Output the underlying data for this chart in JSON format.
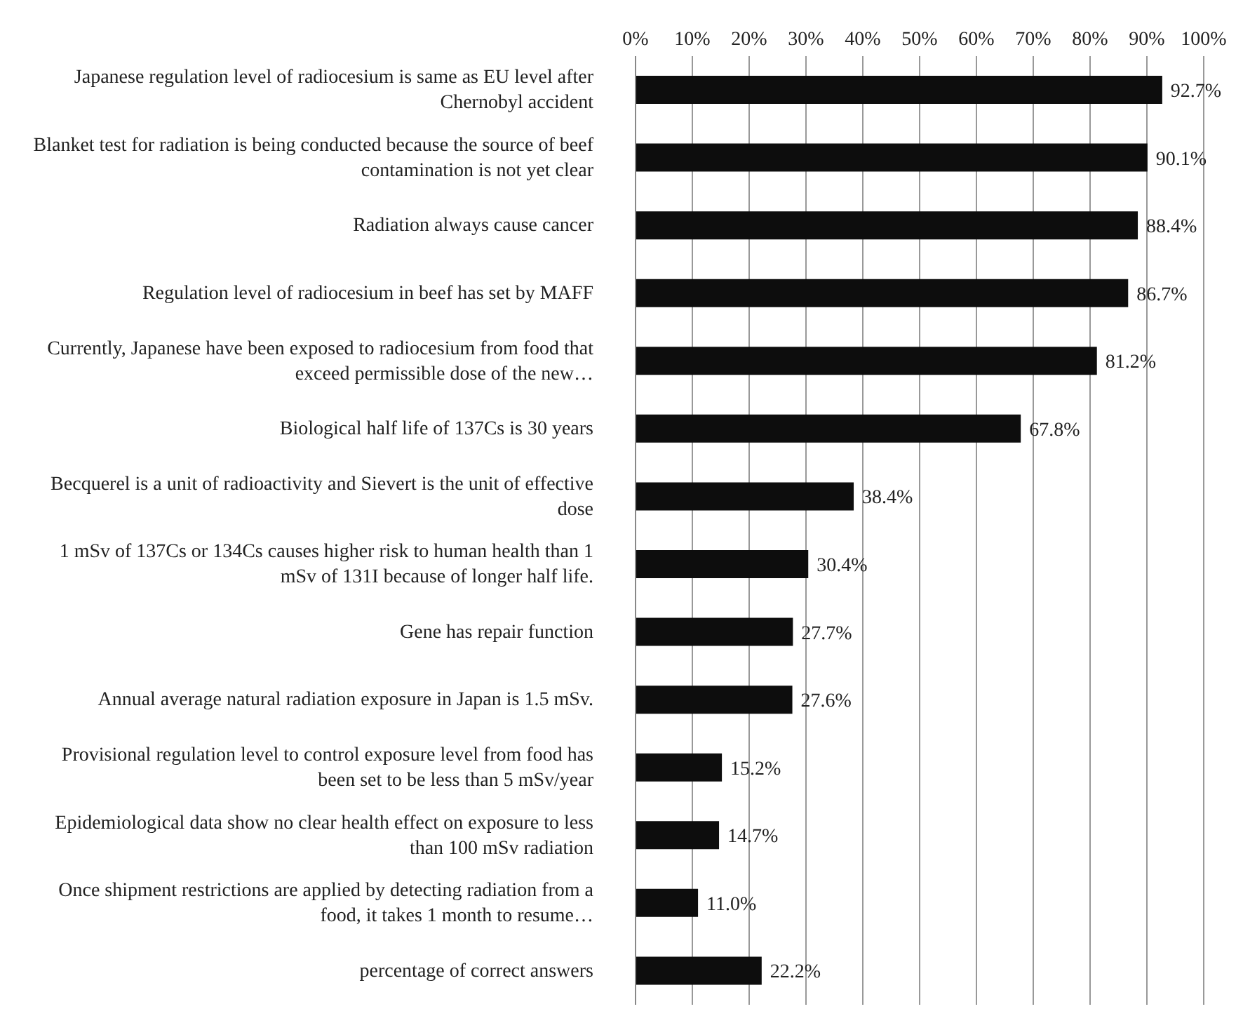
{
  "chart_data": {
    "type": "bar",
    "orientation": "horizontal",
    "categories": [
      "Japanese regulation level of radiocesium is same as EU level after Chernobyl accident",
      "Blanket test for radiation is being conducted because the source of beef contamination is not yet clear",
      "Radiation always cause cancer",
      "Regulation level of radiocesium in beef has set by MAFF",
      "Currently, Japanese have been exposed to radiocesium from food that exceed permissible dose of the new…",
      "Biological half life of 137Cs is 30 years",
      "Becquerel is a unit of radioactivity and Sievert is the unit of effective dose",
      "1 mSv of 137Cs or 134Cs causes higher risk to human health than 1 mSv of 131I because of longer half life.",
      "Gene has repair function",
      "Annual average natural radiation exposure in Japan is 1.5 mSv.",
      "Provisional regulation level to control exposure level from food has been set to be less than 5 mSv/year",
      "Epidemiological data show no clear health effect on exposure to less than 100 mSv radiation",
      "Once shipment restrictions are applied by detecting radiation from a food, it takes 1 month to resume…",
      "percentage of correct answers"
    ],
    "values": [
      92.7,
      90.1,
      88.4,
      86.7,
      81.2,
      67.8,
      38.4,
      30.4,
      27.7,
      27.6,
      15.2,
      14.7,
      11.0,
      22.2
    ],
    "value_labels": [
      "92.7%",
      "90.1%",
      "88.4%",
      "86.7%",
      "81.2%",
      "67.8%",
      "38.4%",
      "30.4%",
      "27.7%",
      "27.6%",
      "15.2%",
      "14.7%",
      "11.0%",
      "22.2%"
    ],
    "color": "#0d0d0d",
    "xlim": [
      0,
      100
    ],
    "xticks": [
      {
        "value": 0,
        "label": "0%"
      },
      {
        "value": 10,
        "label": "10%"
      },
      {
        "value": 20,
        "label": "20%"
      },
      {
        "value": 30,
        "label": "30%"
      },
      {
        "value": 40,
        "label": "40%"
      },
      {
        "value": 50,
        "label": "50%"
      },
      {
        "value": 60,
        "label": "60%"
      },
      {
        "value": 70,
        "label": "70%"
      },
      {
        "value": 80,
        "label": "80%"
      },
      {
        "value": 90,
        "label": "90%"
      },
      {
        "value": 100,
        "label": "100%"
      }
    ],
    "grid": "x"
  }
}
